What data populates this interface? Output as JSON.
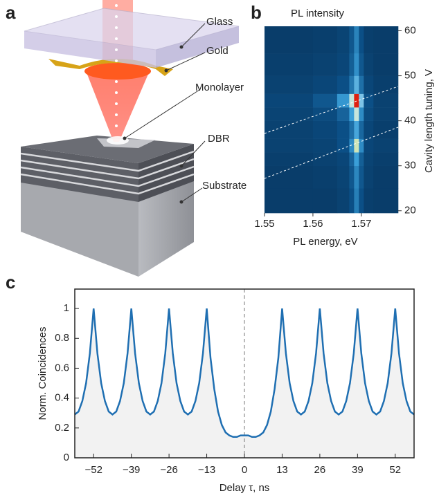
{
  "diagram": {
    "panel_label": "a",
    "labels": [
      "Glass",
      "Gold",
      "Monolayer",
      "DBR",
      "Substrate"
    ]
  },
  "chart_data": [
    {
      "type": "heatmap",
      "panel_label": "b",
      "title": "PL intensity",
      "x_label": "PL energy, eV",
      "y_label": "Cavity length tuning, V",
      "xbins": [
        1.55,
        1.56,
        1.565,
        1.5675,
        1.5685,
        1.5695,
        1.5705,
        1.5725,
        1.5776
      ],
      "ybins": [
        19.5,
        25,
        30,
        33,
        36,
        40,
        43,
        46,
        50,
        55,
        61
      ],
      "z": [
        [
          0.12,
          0.12,
          0.14,
          0.2,
          0.32,
          0.2,
          0.13,
          0.12
        ],
        [
          0.12,
          0.13,
          0.15,
          0.22,
          0.34,
          0.22,
          0.14,
          0.12
        ],
        [
          0.13,
          0.14,
          0.16,
          0.25,
          0.4,
          0.24,
          0.15,
          0.13
        ],
        [
          0.14,
          0.15,
          0.2,
          0.35,
          0.65,
          0.35,
          0.16,
          0.14
        ],
        [
          0.14,
          0.16,
          0.2,
          0.28,
          0.42,
          0.26,
          0.16,
          0.13
        ],
        [
          0.15,
          0.18,
          0.25,
          0.4,
          0.62,
          0.35,
          0.18,
          0.14
        ],
        [
          0.16,
          0.22,
          0.38,
          0.62,
          1.0,
          0.5,
          0.2,
          0.14
        ],
        [
          0.14,
          0.16,
          0.2,
          0.3,
          0.45,
          0.28,
          0.16,
          0.13
        ],
        [
          0.13,
          0.14,
          0.16,
          0.24,
          0.36,
          0.22,
          0.14,
          0.12
        ],
        [
          0.12,
          0.13,
          0.15,
          0.22,
          0.33,
          0.2,
          0.13,
          0.12
        ]
      ],
      "colormap": [
        "#06223f",
        "#0b4f86",
        "#3a9fd8",
        "#bfe6f5",
        "#ffe000",
        "#e02010"
      ],
      "xlim": [
        1.55,
        1.5776
      ],
      "ylim": [
        19.5,
        61
      ],
      "xticks": [
        1.55,
        1.56,
        1.57
      ],
      "yticks": [
        20,
        30,
        40,
        50,
        60
      ]
    },
    {
      "type": "line",
      "panel_label": "c",
      "x_label": "Delay τ, ns",
      "y_label": "Norm. Coincidences",
      "color": "#1f6fb2",
      "fill_color": "#f2f2f2",
      "x": [
        -58.5,
        -57.2,
        -55.9,
        -54.6,
        -53.3,
        -52,
        -50.7,
        -49.4,
        -48.1,
        -46.8,
        -45.5,
        -44.2,
        -42.9,
        -41.6,
        -40.3,
        -39,
        -37.7,
        -36.4,
        -35.1,
        -33.8,
        -32.5,
        -31.2,
        -29.9,
        -28.6,
        -27.3,
        -26,
        -24.7,
        -23.4,
        -22.1,
        -20.8,
        -19.5,
        -18.2,
        -16.9,
        -15.6,
        -14.3,
        -13,
        -11.7,
        -10.4,
        -9.1,
        -7.8,
        -6.5,
        -5.2,
        -3.9,
        -2.6,
        -1.3,
        0,
        1.3,
        2.6,
        3.9,
        5.2,
        6.5,
        7.8,
        9.1,
        10.4,
        11.7,
        13,
        14.3,
        15.6,
        16.9,
        18.2,
        19.5,
        20.8,
        22.1,
        23.4,
        24.7,
        26,
        27.3,
        28.6,
        29.9,
        31.2,
        32.5,
        33.8,
        35.1,
        36.4,
        37.7,
        39,
        40.3,
        41.6,
        42.9,
        44.2,
        45.5,
        46.8,
        48.1,
        49.4,
        50.7,
        52,
        53.3,
        54.6,
        55.9,
        57.2,
        58.5
      ],
      "values": [
        0.29,
        0.31,
        0.38,
        0.5,
        0.7,
        1.0,
        0.7,
        0.5,
        0.38,
        0.31,
        0.29,
        0.31,
        0.38,
        0.5,
        0.7,
        1.0,
        0.7,
        0.5,
        0.38,
        0.31,
        0.29,
        0.31,
        0.38,
        0.5,
        0.7,
        1.0,
        0.7,
        0.5,
        0.38,
        0.31,
        0.29,
        0.31,
        0.38,
        0.5,
        0.7,
        1.0,
        0.67,
        0.46,
        0.31,
        0.22,
        0.17,
        0.15,
        0.14,
        0.14,
        0.15,
        0.15,
        0.15,
        0.14,
        0.14,
        0.15,
        0.17,
        0.22,
        0.31,
        0.46,
        0.67,
        1.0,
        0.7,
        0.5,
        0.38,
        0.31,
        0.29,
        0.31,
        0.38,
        0.5,
        0.7,
        1.0,
        0.7,
        0.5,
        0.38,
        0.31,
        0.29,
        0.31,
        0.38,
        0.5,
        0.7,
        1.0,
        0.7,
        0.5,
        0.38,
        0.31,
        0.29,
        0.31,
        0.38,
        0.5,
        0.7,
        1.0,
        0.7,
        0.5,
        0.38,
        0.31,
        0.29
      ],
      "xlim": [
        -58.5,
        58.5
      ],
      "ylim": [
        0,
        1.13
      ],
      "xticks": [
        {
          "value": -52,
          "label": "−52"
        },
        {
          "value": -39,
          "label": "−39"
        },
        {
          "value": -26,
          "label": "−26"
        },
        {
          "value": -13,
          "label": "−13"
        },
        0,
        13,
        26,
        39,
        52
      ],
      "yticks": [
        0,
        0.2,
        0.4,
        0.6,
        0.8,
        1
      ]
    }
  ]
}
